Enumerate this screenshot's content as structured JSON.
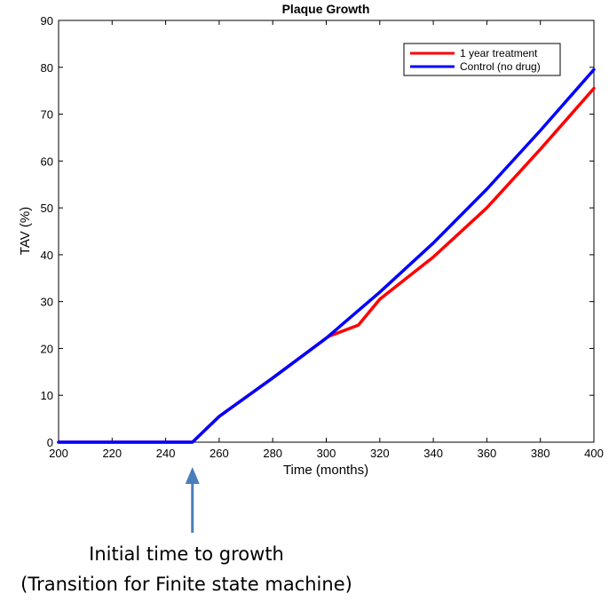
{
  "chart_data": {
    "type": "line",
    "title": "Plaque Growth",
    "xlabel": "Time (months)",
    "ylabel": "TAV (%)",
    "xlim": [
      200,
      400
    ],
    "ylim": [
      0,
      90
    ],
    "xticks": [
      200,
      220,
      240,
      260,
      280,
      300,
      320,
      340,
      360,
      380,
      400
    ],
    "yticks": [
      0,
      10,
      20,
      30,
      40,
      50,
      60,
      70,
      80,
      90
    ],
    "grid": false,
    "legend_position": "top-right",
    "series": [
      {
        "name": "1 year treatment",
        "color": "#ff0000",
        "x": [
          200,
          250,
          260,
          280,
          300,
          301,
          312,
          320,
          340,
          360,
          380,
          400
        ],
        "y": [
          0,
          0,
          5.5,
          13.7,
          22.2,
          22.6,
          25.0,
          30.5,
          39.5,
          50.0,
          62.5,
          75.5
        ]
      },
      {
        "name": "Control (no drug)",
        "color": "#0000ff",
        "x": [
          200,
          250,
          260,
          280,
          300,
          320,
          340,
          360,
          380,
          400
        ],
        "y": [
          0,
          0,
          5.5,
          13.7,
          22.2,
          32.0,
          42.5,
          54.0,
          66.5,
          79.5
        ]
      }
    ]
  },
  "annotation": {
    "arrow_x": 250,
    "arrow_color": "#4a7ebb",
    "line1": "Initial time to growth",
    "line2": "(Transition for Finite state machine)"
  }
}
